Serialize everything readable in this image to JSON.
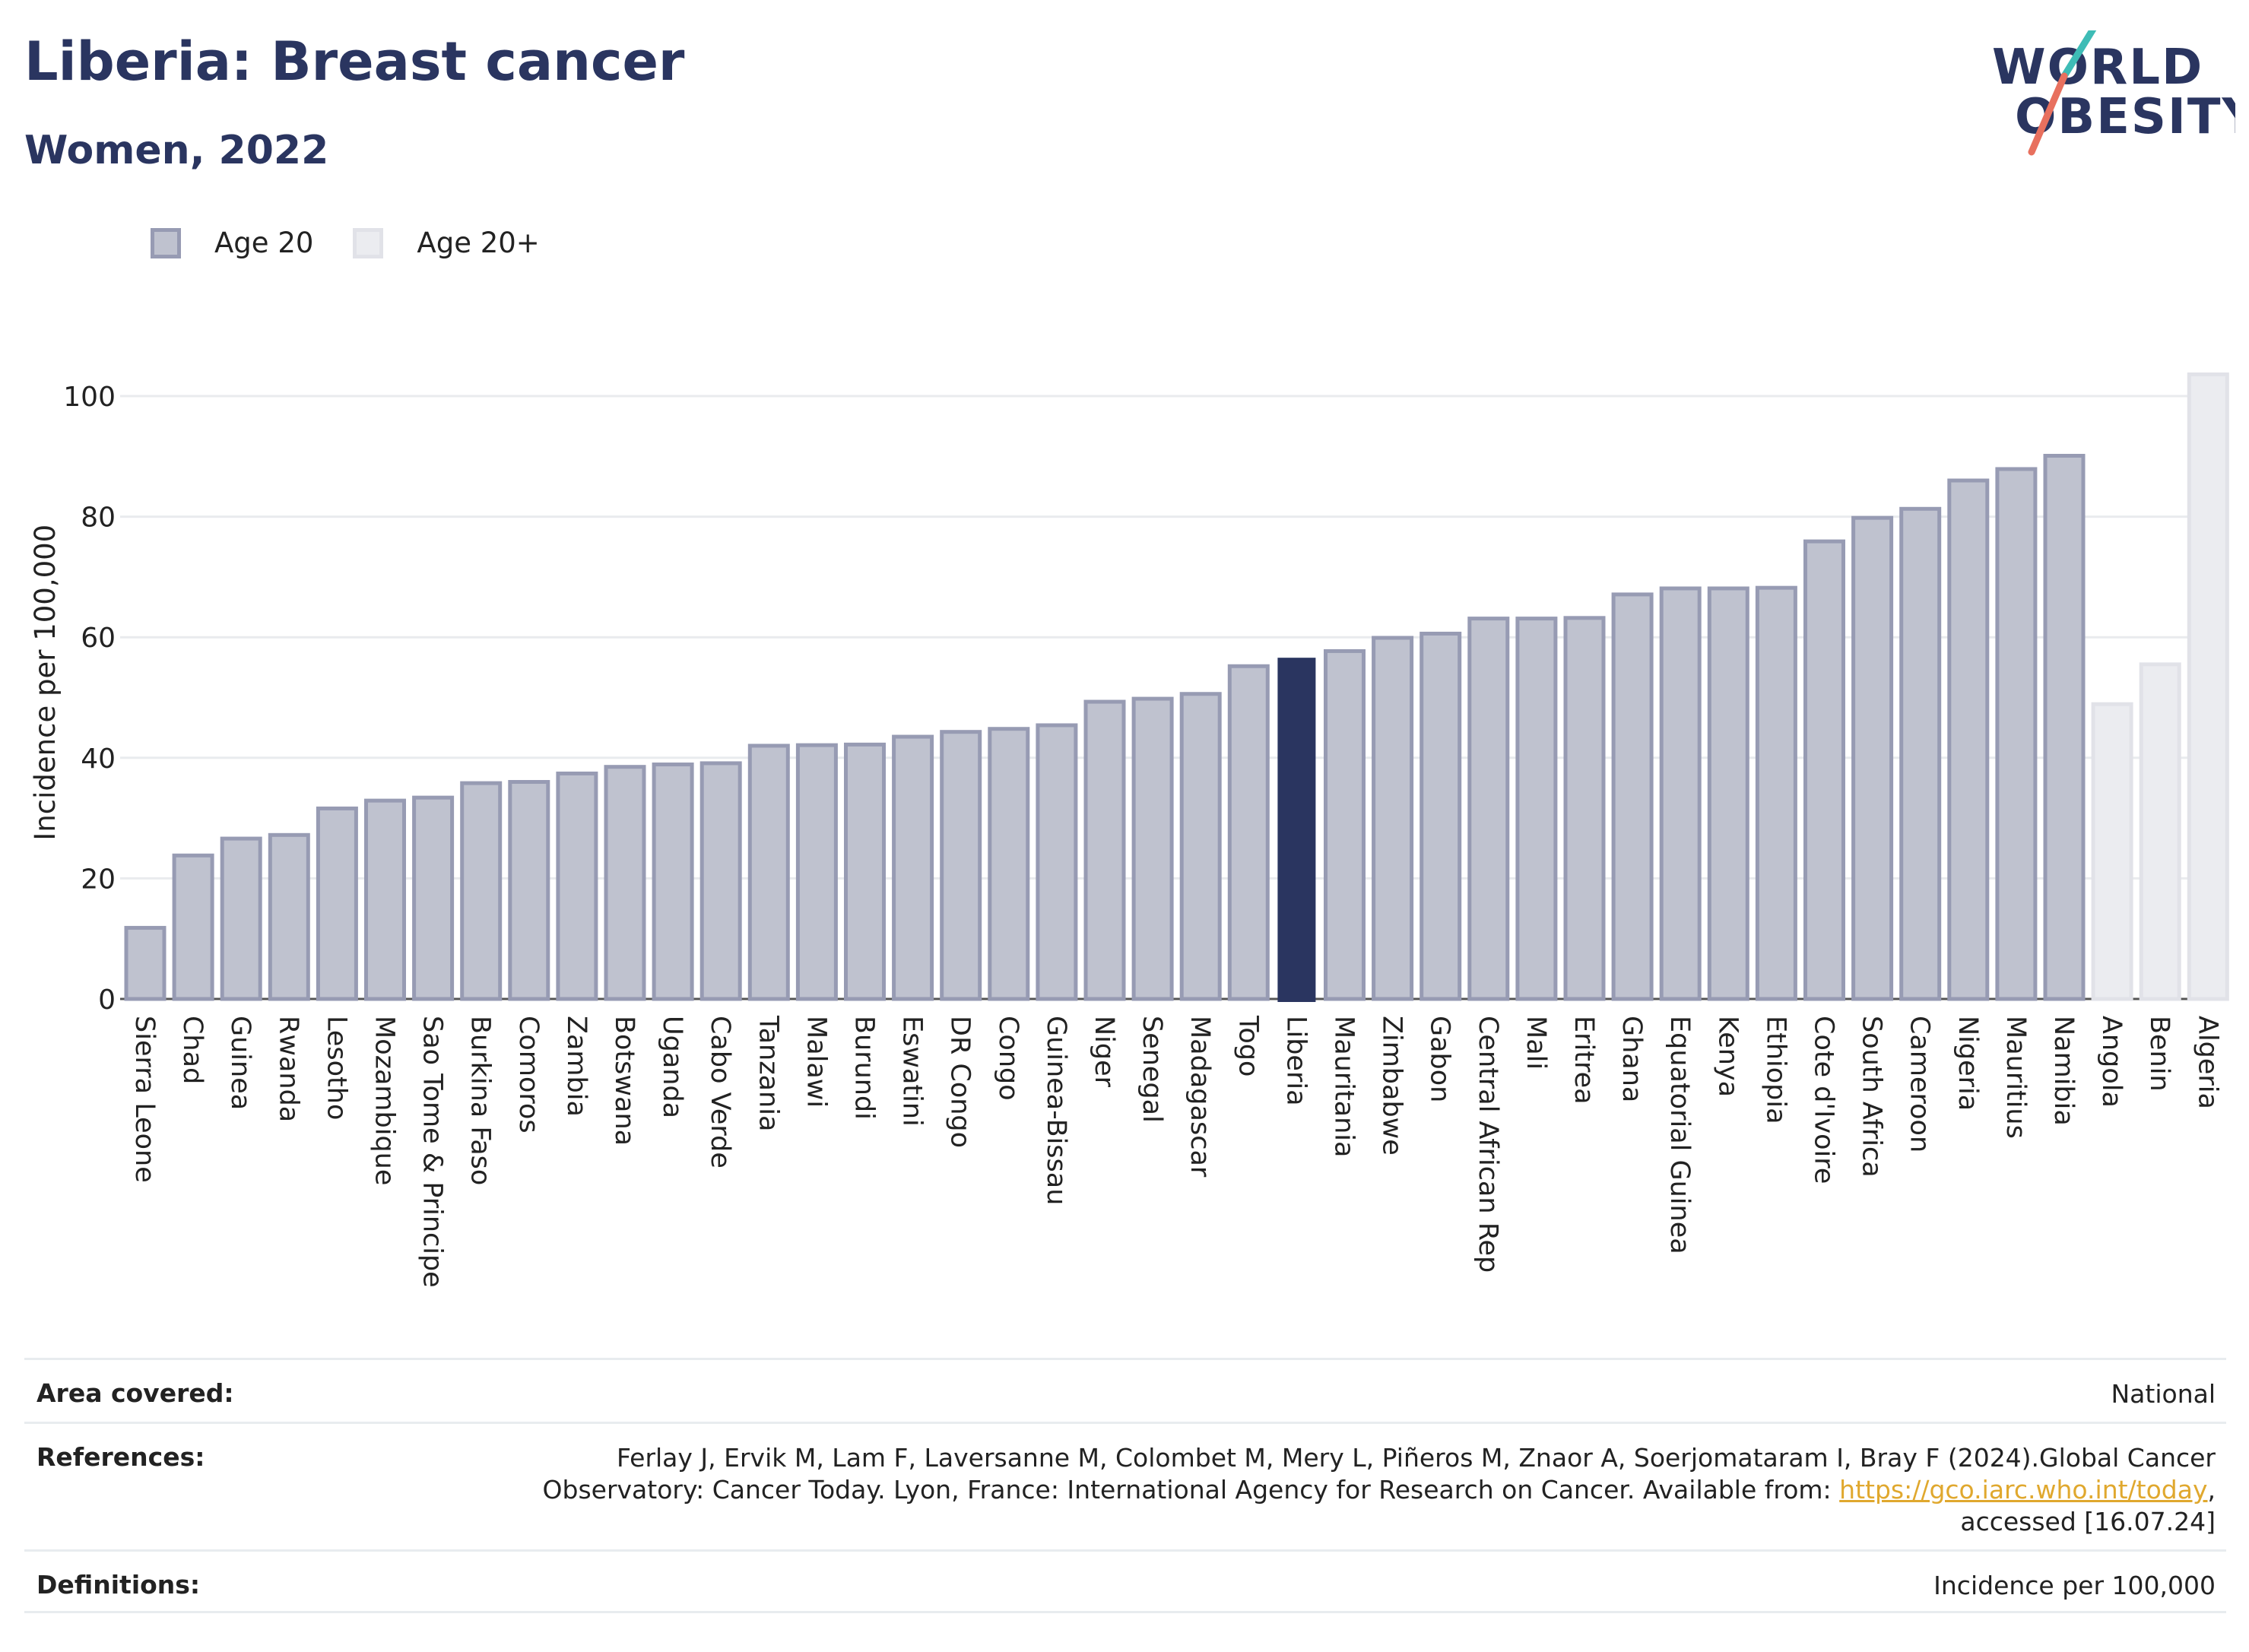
{
  "header": {
    "title": "Liberia: Breast cancer",
    "subtitle": "Women, 2022"
  },
  "logo": {
    "line1": "WORLD",
    "line2": "OBESITY"
  },
  "legend": [
    {
      "label": "Age 20",
      "color": "#bfc2cf"
    },
    {
      "label": "Age 20+",
      "color": "#ebecf0"
    }
  ],
  "colors": {
    "highlight": "#2a3560",
    "age20": "#bfc2cf",
    "age20_border": "#979bb3",
    "age20plus": "#ebecf0",
    "age20plus_border": "#e1e2e8"
  },
  "chart_data": {
    "type": "bar",
    "title": "Liberia: Breast cancer",
    "subtitle": "Women, 2022",
    "ylabel": "Incidence per 100,000",
    "xlabel": "",
    "ylim": [
      0,
      105
    ],
    "yticks": [
      0,
      20,
      40,
      60,
      80,
      100
    ],
    "grid": true,
    "legend_position": "top-left",
    "highlight": "Liberia",
    "categories": [
      "Sierra Leone",
      "Chad",
      "Guinea",
      "Rwanda",
      "Lesotho",
      "Mozambique",
      "Sao Tome & Principe",
      "Burkina Faso",
      "Comoros",
      "Zambia",
      "Botswana",
      "Uganda",
      "Cabo Verde",
      "Tanzania",
      "Malawi",
      "Burundi",
      "Eswatini",
      "DR Congo",
      "Congo",
      "Guinea-Bissau",
      "Niger",
      "Senegal",
      "Madagascar",
      "Togo",
      "Liberia",
      "Mauritania",
      "Zimbabwe",
      "Gabon",
      "Central African Rep",
      "Mali",
      "Eritrea",
      "Ghana",
      "Equatorial Guinea",
      "Kenya",
      "Ethiopia",
      "Cote d'Ivoire",
      "South Africa",
      "Cameroon",
      "Nigeria",
      "Mauritius",
      "Namibia",
      "Angola",
      "Benin",
      "Algeria"
    ],
    "values": [
      11.8,
      23.8,
      26.6,
      27.2,
      31.6,
      32.9,
      33.4,
      35.8,
      36.0,
      37.4,
      38.5,
      38.9,
      39.1,
      42.0,
      42.1,
      42.2,
      43.5,
      44.3,
      44.8,
      45.4,
      49.3,
      49.8,
      50.6,
      55.2,
      56.6,
      57.7,
      59.9,
      60.6,
      63.1,
      63.1,
      63.2,
      67.1,
      68.1,
      68.1,
      68.2,
      75.9,
      79.8,
      81.3,
      86.0,
      87.9,
      90.1,
      48.9,
      55.5,
      103.6
    ],
    "groups": [
      "Age 20",
      "Age 20",
      "Age 20",
      "Age 20",
      "Age 20",
      "Age 20",
      "Age 20",
      "Age 20",
      "Age 20",
      "Age 20",
      "Age 20",
      "Age 20",
      "Age 20",
      "Age 20",
      "Age 20",
      "Age 20",
      "Age 20",
      "Age 20",
      "Age 20",
      "Age 20",
      "Age 20",
      "Age 20",
      "Age 20",
      "Age 20",
      "Age 20",
      "Age 20",
      "Age 20",
      "Age 20",
      "Age 20",
      "Age 20",
      "Age 20",
      "Age 20",
      "Age 20",
      "Age 20",
      "Age 20",
      "Age 20",
      "Age 20",
      "Age 20",
      "Age 20",
      "Age 20",
      "Age 20",
      "Age 20+",
      "Age 20+",
      "Age 20+"
    ]
  },
  "footer": {
    "area_label": "Area covered:",
    "area_value": "National",
    "references_label": "References:",
    "references_line1": "Ferlay J, Ervik M, Lam F, Laversanne M, Colombet M, Mery L, Piñeros M, Znaor A, Soerjomataram I, Bray F (2024).Global Cancer",
    "references_line2": "Observatory: Cancer Today. Lyon, France: International Agency for Research on Cancer. Available from:",
    "references_link": "https://gco.iarc.who.int/today",
    "references_line3": "accessed [16.07.24]",
    "definitions_label": "Definitions:",
    "definitions_value": "Incidence per 100,000"
  }
}
